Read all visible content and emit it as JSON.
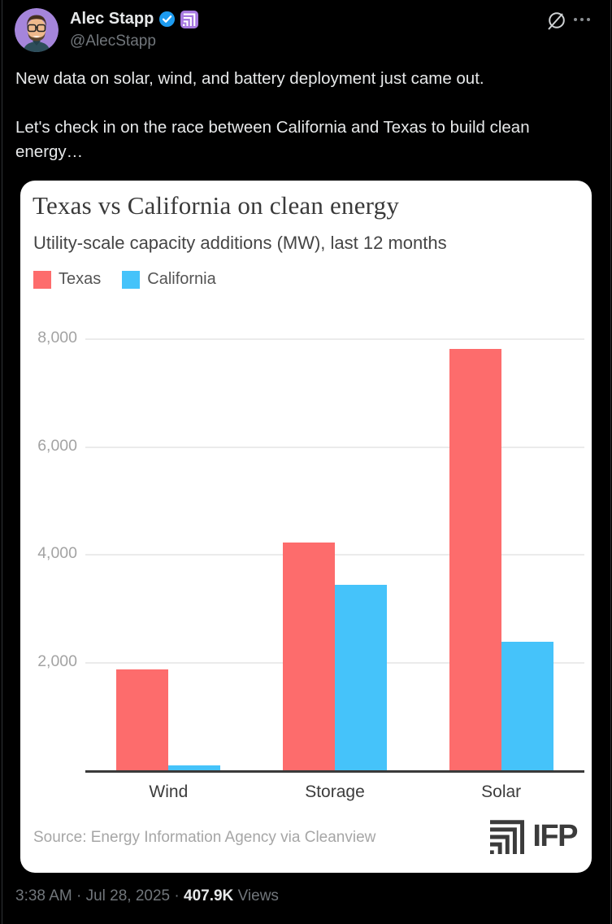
{
  "page": {
    "background": "#000000",
    "column_border_color": "#2f3336"
  },
  "header": {
    "display_name": "Alec Stapp",
    "handle": "@AlecStapp",
    "icons": {
      "verified_badge": "blue-check-seal",
      "verified_color": "#1d9bf0",
      "name_emoji": "ifp-logo-purple-square",
      "name_emoji_bg": "#a779e0",
      "grok": "circle-with-slash",
      "more": "three-dots"
    }
  },
  "tweet": {
    "paragraph1": "New data on solar, wind, and battery deployment just came out.",
    "paragraph2": "Let's check in on the race between California and Texas to build clean energy…"
  },
  "chart_data": {
    "type": "bar",
    "title": "Texas vs California on clean energy",
    "subtitle": "Utility-scale capacity additions (MW), last 12 months",
    "categories": [
      "Wind",
      "Storage",
      "Solar"
    ],
    "series": [
      {
        "name": "Texas",
        "color": "#FD6C6C",
        "values": [
          1870,
          4220,
          7820
        ]
      },
      {
        "name": "California",
        "color": "#45C3FA",
        "values": [
          90,
          3440,
          2390
        ]
      }
    ],
    "y_ticks": [
      2000,
      4000,
      6000,
      8000
    ],
    "y_tick_labels": [
      "2,000",
      "4,000",
      "6,000",
      "8,000"
    ],
    "ylim": [
      0,
      8400
    ],
    "grid": "horizontal",
    "legend_position": "top-left",
    "source": "Source: Energy Information Agency via Cleanview",
    "logo_text": "IFP"
  },
  "footer": {
    "timestamp": "3:38 AM · Jul 28, 2025",
    "separator": " · ",
    "views_count": "407.9K",
    "views_label": " Views"
  }
}
